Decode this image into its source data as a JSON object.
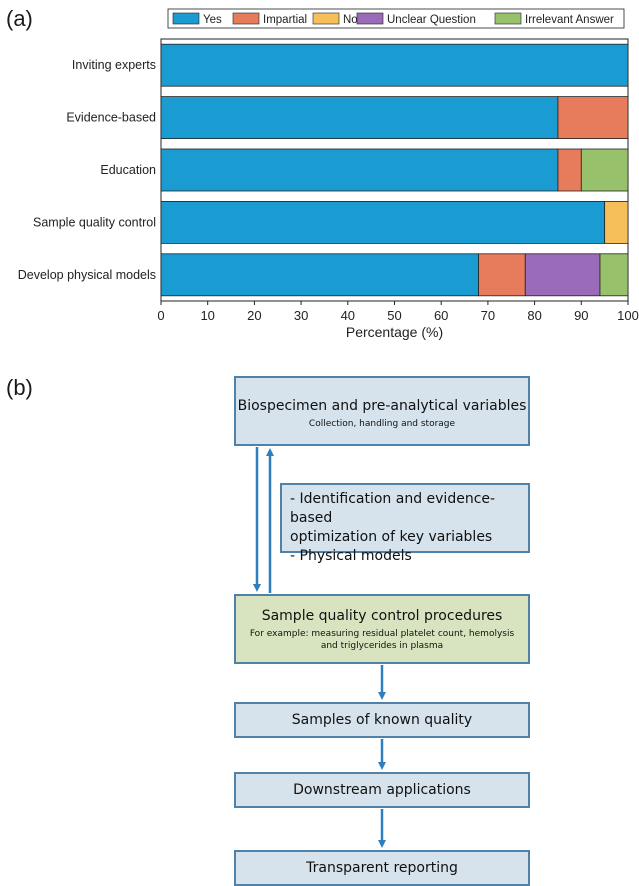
{
  "panel_a_label": "(a)",
  "panel_b_label": "(b)",
  "chart_data": {
    "type": "bar",
    "orientation": "horizontal",
    "stacked": true,
    "categories": [
      "Inviting experts",
      "Evidence-based",
      "Education",
      "Sample quality control",
      "Develop physical models"
    ],
    "series": [
      {
        "name": "Yes",
        "color": "#1a9bd1",
        "values": [
          100,
          85,
          85,
          95,
          68
        ]
      },
      {
        "name": "Impartial",
        "color": "#e67c5b",
        "values": [
          0,
          15,
          5,
          0,
          10
        ]
      },
      {
        "name": "No",
        "color": "#f6bf5a",
        "values": [
          0,
          0,
          0,
          5,
          0
        ]
      },
      {
        "name": "Unclear Question",
        "color": "#9a6bb8",
        "values": [
          0,
          0,
          0,
          0,
          16
        ]
      },
      {
        "name": "Irrelevant Answer",
        "color": "#97c26b",
        "values": [
          0,
          0,
          10,
          0,
          6
        ]
      }
    ],
    "xlim": [
      0,
      100
    ],
    "xticks": [
      "0",
      "10",
      "20",
      "30",
      "40",
      "50",
      "60",
      "70",
      "80",
      "90",
      "100"
    ],
    "xlabel": "Percentage (%)",
    "ylabel": "",
    "title": "",
    "legend_position": "top"
  },
  "flowchart": {
    "box1": {
      "title": "Biospecimen and pre-analytical variables",
      "subtitle": "Collection, handling and storage"
    },
    "note": {
      "lines": [
        "- Identification and evidence-based",
        "optimization of key variables",
        "- Physical models"
      ]
    },
    "box2": {
      "title": "Sample quality control procedures",
      "subtitle_lines": [
        "For example: measuring residual platelet count, hemolysis",
        "and triglycerides in plasma"
      ]
    },
    "box3": {
      "title": "Samples of known quality"
    },
    "box4": {
      "title": "Downstream applications"
    },
    "box5": {
      "title": "Transparent reporting"
    },
    "arrow_color": "#2e7fc0"
  }
}
